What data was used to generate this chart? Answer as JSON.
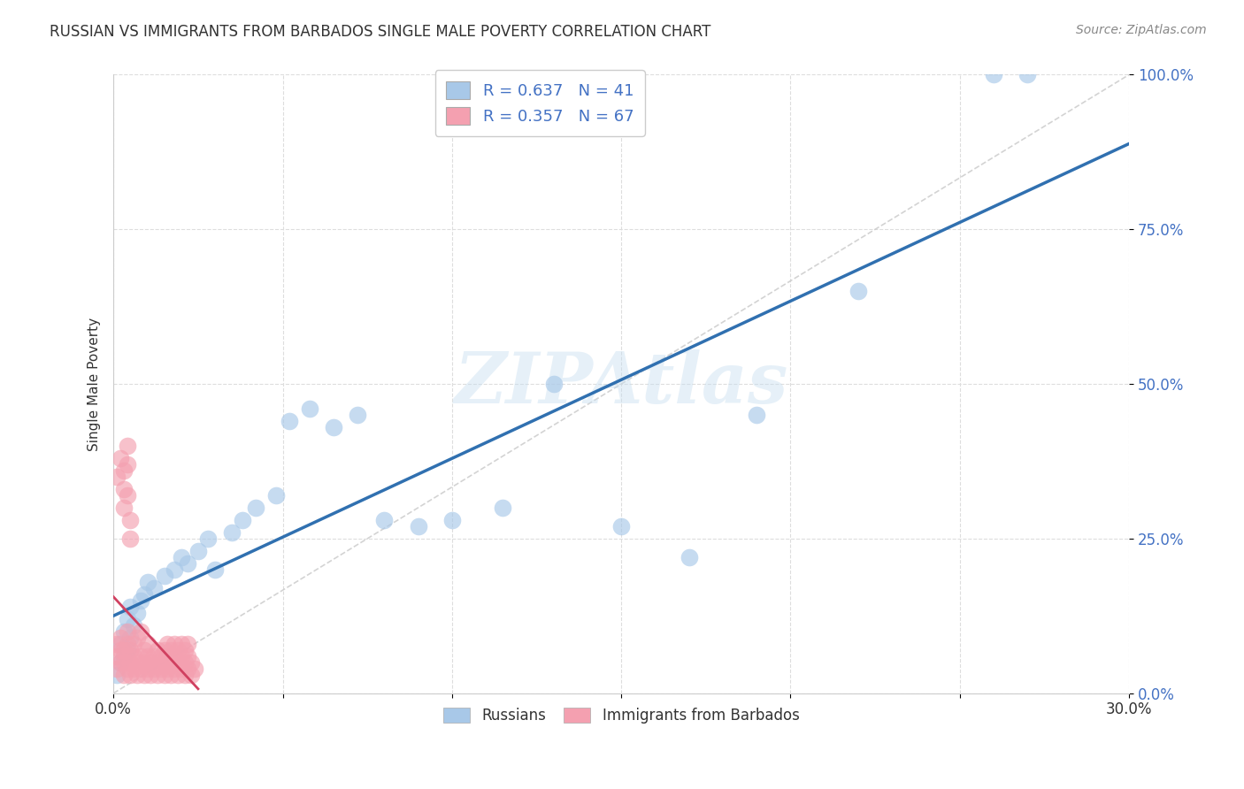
{
  "title": "RUSSIAN VS IMMIGRANTS FROM BARBADOS SINGLE MALE POVERTY CORRELATION CHART",
  "source": "Source: ZipAtlas.com",
  "ylabel": "Single Male Poverty",
  "xlim": [
    0.0,
    0.3
  ],
  "ylim": [
    0.0,
    1.0
  ],
  "x_ticks": [
    0.0,
    0.05,
    0.1,
    0.15,
    0.2,
    0.25,
    0.3
  ],
  "x_tick_labels": [
    "0.0%",
    "",
    "",
    "",
    "",
    "",
    "30.0%"
  ],
  "y_ticks": [
    0.0,
    0.25,
    0.5,
    0.75,
    1.0
  ],
  "y_tick_labels": [
    "0.0%",
    "25.0%",
    "50.0%",
    "75.0%",
    "100.0%"
  ],
  "legend_R1": "0.637",
  "legend_N1": "41",
  "legend_R2": "0.357",
  "legend_N2": "67",
  "blue_color": "#a8c8e8",
  "blue_line_color": "#3070b0",
  "pink_color": "#f4a0b0",
  "pink_line_color": "#d04060",
  "grid_color": "#dddddd",
  "watermark": "ZIPAtlas",
  "russians_x": [
    0.001,
    0.002,
    0.002,
    0.003,
    0.003,
    0.004,
    0.004,
    0.005,
    0.005,
    0.006,
    0.007,
    0.008,
    0.009,
    0.01,
    0.012,
    0.015,
    0.018,
    0.02,
    0.022,
    0.025,
    0.028,
    0.03,
    0.035,
    0.038,
    0.042,
    0.048,
    0.052,
    0.058,
    0.065,
    0.072,
    0.08,
    0.09,
    0.1,
    0.115,
    0.13,
    0.15,
    0.17,
    0.19,
    0.22,
    0.26,
    0.27
  ],
  "russians_y": [
    0.03,
    0.05,
    0.08,
    0.06,
    0.1,
    0.07,
    0.12,
    0.09,
    0.14,
    0.11,
    0.13,
    0.15,
    0.16,
    0.18,
    0.17,
    0.19,
    0.2,
    0.22,
    0.21,
    0.23,
    0.25,
    0.2,
    0.26,
    0.28,
    0.3,
    0.32,
    0.44,
    0.46,
    0.43,
    0.45,
    0.28,
    0.27,
    0.28,
    0.3,
    0.5,
    0.27,
    0.22,
    0.45,
    0.65,
    1.0,
    1.0
  ],
  "barbados_x": [
    0.001,
    0.001,
    0.001,
    0.002,
    0.002,
    0.002,
    0.003,
    0.003,
    0.003,
    0.004,
    0.004,
    0.004,
    0.004,
    0.005,
    0.005,
    0.005,
    0.006,
    0.006,
    0.006,
    0.007,
    0.007,
    0.007,
    0.008,
    0.008,
    0.008,
    0.009,
    0.009,
    0.009,
    0.01,
    0.01,
    0.01,
    0.011,
    0.011,
    0.012,
    0.012,
    0.013,
    0.013,
    0.013,
    0.014,
    0.014,
    0.015,
    0.015,
    0.015,
    0.016,
    0.016,
    0.016,
    0.017,
    0.017,
    0.017,
    0.018,
    0.018,
    0.018,
    0.019,
    0.019,
    0.019,
    0.02,
    0.02,
    0.02,
    0.021,
    0.021,
    0.021,
    0.022,
    0.022,
    0.022,
    0.023,
    0.023,
    0.024
  ],
  "barbados_y": [
    0.04,
    0.06,
    0.08,
    0.05,
    0.07,
    0.09,
    0.03,
    0.05,
    0.07,
    0.04,
    0.06,
    0.08,
    0.1,
    0.03,
    0.05,
    0.07,
    0.04,
    0.06,
    0.08,
    0.03,
    0.05,
    0.09,
    0.04,
    0.06,
    0.1,
    0.03,
    0.05,
    0.07,
    0.04,
    0.06,
    0.08,
    0.03,
    0.05,
    0.04,
    0.06,
    0.03,
    0.05,
    0.07,
    0.04,
    0.06,
    0.03,
    0.05,
    0.07,
    0.04,
    0.06,
    0.08,
    0.03,
    0.05,
    0.07,
    0.04,
    0.06,
    0.08,
    0.03,
    0.05,
    0.07,
    0.04,
    0.06,
    0.08,
    0.03,
    0.05,
    0.07,
    0.04,
    0.06,
    0.08,
    0.03,
    0.05,
    0.04
  ],
  "barbados_extra_x": [
    0.001,
    0.002,
    0.003,
    0.004,
    0.003,
    0.004,
    0.005,
    0.005,
    0.004,
    0.003
  ],
  "barbados_extra_y": [
    0.35,
    0.38,
    0.36,
    0.4,
    0.3,
    0.32,
    0.28,
    0.25,
    0.37,
    0.33
  ]
}
